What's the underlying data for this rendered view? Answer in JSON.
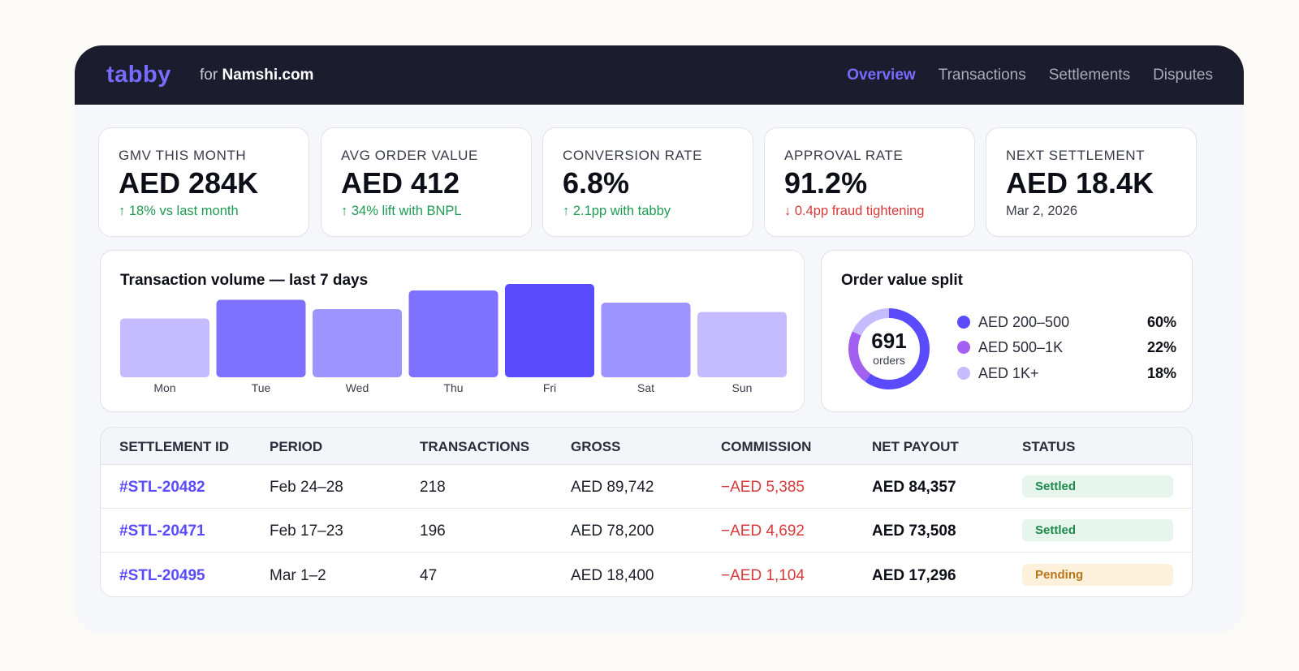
{
  "header": {
    "logo": "tabby",
    "for_prefix": "for",
    "merchant": "Namshi.com",
    "nav": [
      {
        "label": "Overview",
        "active": true
      },
      {
        "label": "Transactions",
        "active": false
      },
      {
        "label": "Settlements",
        "active": false
      },
      {
        "label": "Disputes",
        "active": false
      }
    ]
  },
  "kpis": [
    {
      "label": "GMV THIS MONTH",
      "value": "AED 284K",
      "note": "18% vs last month",
      "trend": "up",
      "arrow": "↑"
    },
    {
      "label": "AVG ORDER VALUE",
      "value": "AED 412",
      "note": "34% lift with BNPL",
      "trend": "up",
      "arrow": "↑"
    },
    {
      "label": "CONVERSION RATE",
      "value": "6.8%",
      "note": "2.1pp with tabby",
      "trend": "up",
      "arrow": "↑"
    },
    {
      "label": "APPROVAL RATE",
      "value": "91.2%",
      "note": "0.4pp fraud tightening",
      "trend": "down",
      "arrow": "↓"
    },
    {
      "label": "NEXT SETTLEMENT",
      "value": "AED 18.4K",
      "note": "Mar 2, 2026",
      "trend": "neutral",
      "arrow": ""
    }
  ],
  "chart_data": [
    {
      "type": "bar",
      "title": "Transaction volume — last 7 days",
      "categories": [
        "Mon",
        "Tue",
        "Wed",
        "Thu",
        "Fri",
        "Sat",
        "Sun"
      ],
      "values": [
        63,
        83,
        73,
        93,
        100,
        80,
        70
      ],
      "colors": [
        "#c4bcff",
        "#7f71ff",
        "#9e94ff",
        "#7f71ff",
        "#5b4bff",
        "#9e94ff",
        "#c4bcff"
      ],
      "ylim": [
        0,
        100
      ],
      "grid": false,
      "xlabel": "",
      "ylabel": ""
    },
    {
      "type": "pie",
      "title": "Order value split",
      "center_value": "691",
      "center_label": "orders",
      "categories": [
        "AED 200–500",
        "AED 500–1K",
        "AED 1K+"
      ],
      "values": [
        60,
        22,
        18
      ],
      "value_labels": [
        "60%",
        "22%",
        "18%"
      ],
      "colors": [
        "#5b4bff",
        "#a35ff0",
        "#c4bcff"
      ]
    }
  ],
  "table": {
    "columns": [
      "SETTLEMENT ID",
      "PERIOD",
      "TRANSACTIONS",
      "GROSS",
      "COMMISSION",
      "NET PAYOUT",
      "STATUS"
    ],
    "rows": [
      {
        "id": "#STL-20482",
        "period": "Feb 24–28",
        "transactions": "218",
        "gross": "AED 89,742",
        "commission": "−AED 5,385",
        "net": "AED 84,357",
        "status": "Settled"
      },
      {
        "id": "#STL-20471",
        "period": "Feb 17–23",
        "transactions": "196",
        "gross": "AED 78,200",
        "commission": "−AED 4,692",
        "net": "AED 73,508",
        "status": "Settled"
      },
      {
        "id": "#STL-20495",
        "period": "Mar 1–2",
        "transactions": "47",
        "gross": "AED 18,400",
        "commission": "−AED 1,104",
        "net": "AED 17,296",
        "status": "Pending"
      }
    ]
  }
}
